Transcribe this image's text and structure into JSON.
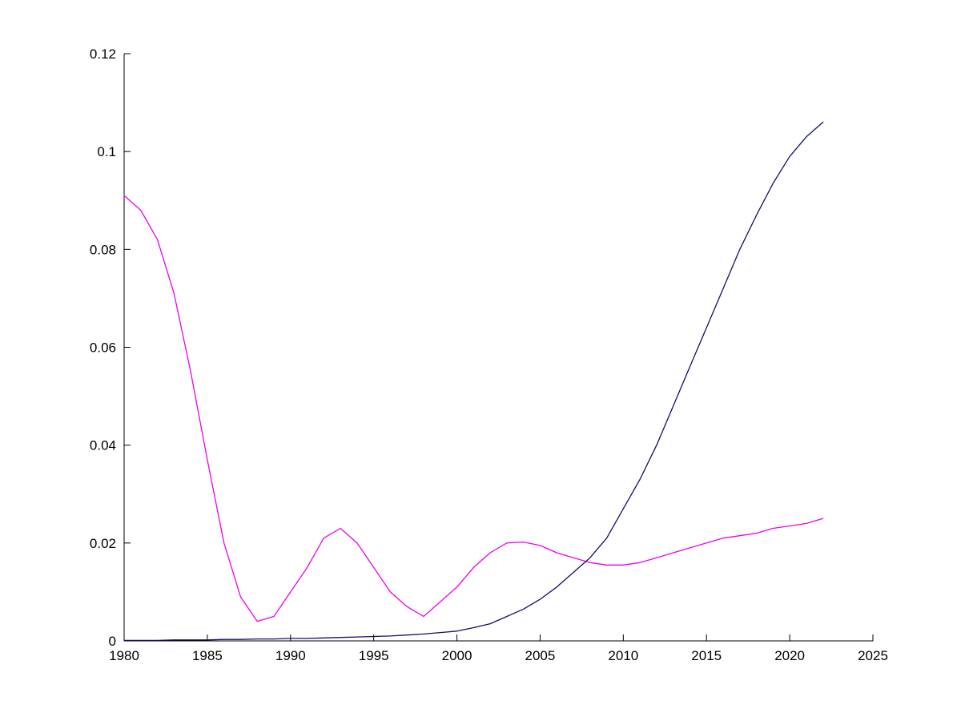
{
  "figure": {
    "background_color": "#ffffff",
    "axis_color": "#000000"
  },
  "chart_data": {
    "type": "line",
    "title": "",
    "xlabel": "",
    "ylabel": "",
    "xlim": [
      1980,
      2025
    ],
    "ylim": [
      0,
      0.12
    ],
    "grid": false,
    "legend": "none",
    "box": false,
    "x_tick_labels": [
      "1980",
      "1985",
      "1990",
      "1995",
      "2000",
      "2005",
      "2010",
      "2015",
      "2020",
      "2025"
    ],
    "x_tick_values": [
      1980,
      1985,
      1990,
      1995,
      2000,
      2005,
      2010,
      2015,
      2020,
      2025
    ],
    "y_tick_labels": [
      "0",
      "0.02",
      "0.04",
      "0.06",
      "0.08",
      "0.1",
      "0.12"
    ],
    "y_tick_values": [
      0,
      0.02,
      0.04,
      0.06,
      0.08,
      0.1,
      0.12
    ],
    "x": [
      1980,
      1981,
      1982,
      1983,
      1984,
      1985,
      1986,
      1987,
      1988,
      1989,
      1990,
      1991,
      1992,
      1993,
      1994,
      1995,
      1996,
      1997,
      1998,
      1999,
      2000,
      2001,
      2002,
      2003,
      2004,
      2005,
      2006,
      2007,
      2008,
      2009,
      2010,
      2011,
      2012,
      2013,
      2014,
      2015,
      2016,
      2017,
      2018,
      2019,
      2020,
      2021,
      2022
    ],
    "series": [
      {
        "name": "magenta-series",
        "color": "#ee00ee",
        "values": [
          0.091,
          0.088,
          0.082,
          0.071,
          0.055,
          0.037,
          0.02,
          0.009,
          0.004,
          0.005,
          0.01,
          0.015,
          0.021,
          0.023,
          0.02,
          0.015,
          0.01,
          0.007,
          0.005,
          0.008,
          0.011,
          0.015,
          0.018,
          0.02,
          0.0202,
          0.0195,
          0.018,
          0.017,
          0.016,
          0.0155,
          0.0155,
          0.016,
          0.017,
          0.018,
          0.019,
          0.02,
          0.021,
          0.0215,
          0.022,
          0.023,
          0.0235,
          0.024,
          0.025
        ]
      },
      {
        "name": "dark-blue-series",
        "color": "#10106a",
        "values": [
          0.0001,
          0.0001,
          0.0001,
          0.0002,
          0.0002,
          0.0002,
          0.0003,
          0.0003,
          0.0004,
          0.0004,
          0.0005,
          0.0005,
          0.0006,
          0.0007,
          0.0008,
          0.0009,
          0.001,
          0.0012,
          0.0014,
          0.0017,
          0.002,
          0.0027,
          0.0035,
          0.005,
          0.0065,
          0.0085,
          0.011,
          0.014,
          0.017,
          0.021,
          0.027,
          0.033,
          0.04,
          0.048,
          0.056,
          0.064,
          0.072,
          0.08,
          0.087,
          0.0935,
          0.099,
          0.103,
          0.106
        ]
      }
    ]
  }
}
